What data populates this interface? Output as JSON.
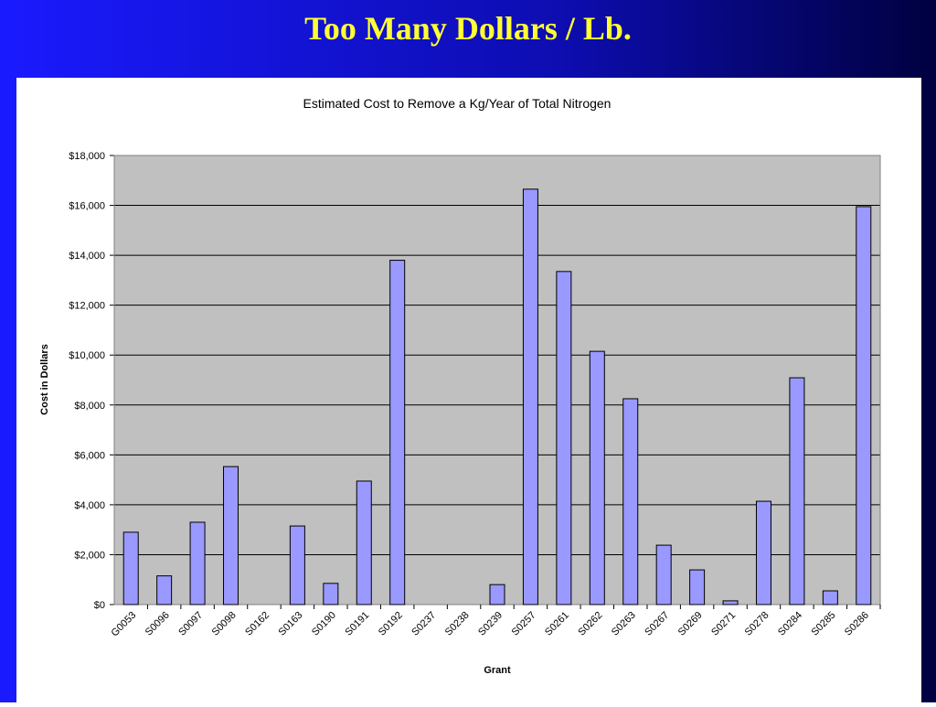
{
  "slide_title": "Too Many Dollars / Lb.",
  "chart_data": {
    "type": "bar",
    "title": "Estimated Cost to Remove a Kg/Year of Total Nitrogen",
    "x_label": "Grant",
    "y_label": "Cost in Dollars",
    "categories": [
      "G0053",
      "S0096",
      "S0097",
      "S0098",
      "S0162",
      "S0163",
      "S0190",
      "S0191",
      "S0192",
      "S0237",
      "S0238",
      "S0239",
      "S0257",
      "S0261",
      "S0262",
      "S0263",
      "S0267",
      "S0269",
      "S0271",
      "S0278",
      "S0284",
      "S0285",
      "S0286"
    ],
    "values": [
      2900,
      1150,
      3300,
      5530,
      0,
      3150,
      850,
      4950,
      13800,
      0,
      0,
      800,
      16650,
      13350,
      10150,
      8250,
      2380,
      1390,
      150,
      4140,
      9090,
      550,
      15950
    ],
    "color": "#9999ff",
    "ylim": [
      0,
      18000
    ],
    "yticks": [
      {
        "value": 0,
        "label": "$0"
      },
      {
        "value": 2000,
        "label": "$2,000"
      },
      {
        "value": 4000,
        "label": "$4,000"
      },
      {
        "value": 6000,
        "label": "$6,000"
      },
      {
        "value": 8000,
        "label": "$8,000"
      },
      {
        "value": 10000,
        "label": "$10,000"
      },
      {
        "value": 12000,
        "label": "$12,000"
      },
      {
        "value": 14000,
        "label": "$14,000"
      },
      {
        "value": 16000,
        "label": "$16,000"
      },
      {
        "value": 18000,
        "label": "$18,000"
      }
    ],
    "grid": true
  }
}
